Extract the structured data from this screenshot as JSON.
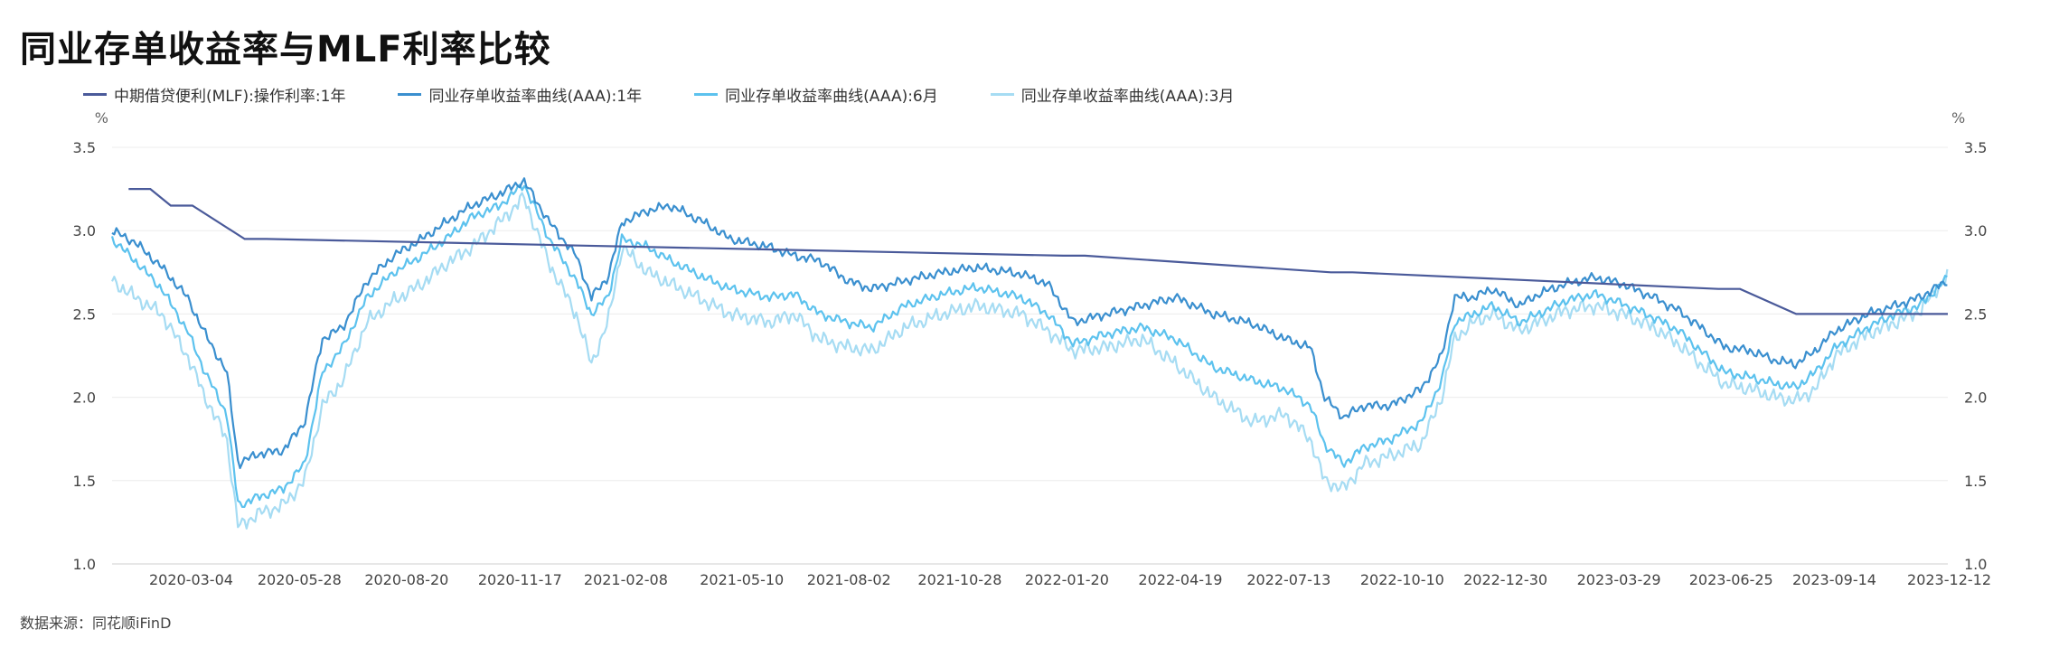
{
  "title": "同业存单收益率与MLF利率比较",
  "source": "数据来源：同花顺iFinD",
  "chart_data": {
    "type": "line",
    "y_unit_left": "%",
    "y_unit_right": "%",
    "ylim": [
      1.0,
      3.5
    ],
    "y_ticks": [
      "1.0",
      "1.5",
      "2.0",
      "2.5",
      "3.0",
      "3.5"
    ],
    "x_start": "2020-01-02",
    "x_end": "2023-12-12",
    "x_ticks": [
      "2020-03-04",
      "2020-05-28",
      "2020-08-20",
      "2020-11-17",
      "2021-02-08",
      "2021-05-10",
      "2021-08-02",
      "2021-10-28",
      "2022-01-20",
      "2022-04-19",
      "2022-07-13",
      "2022-10-10",
      "2022-12-30",
      "2023-03-29",
      "2023-06-25",
      "2023-09-14",
      "2023-12-12"
    ],
    "grid": true,
    "legend_position": "top-left",
    "series": [
      {
        "name": "中期借贷便利(MLF):操作利率:1年",
        "color": "#4a5a9a",
        "step": true,
        "points": [
          [
            "2020-01-15",
            3.25
          ],
          [
            "2020-02-17",
            3.15
          ],
          [
            "2020-04-15",
            2.95
          ],
          [
            "2022-01-17",
            2.85
          ],
          [
            "2022-08-15",
            2.75
          ],
          [
            "2023-06-15",
            2.65
          ],
          [
            "2023-08-15",
            2.5
          ],
          [
            "2023-12-12",
            2.5
          ]
        ]
      },
      {
        "name": "同业存单收益率曲线(AAA):1年",
        "color": "#3a8fcf",
        "points": [
          [
            "2020-01-02",
            3.0
          ],
          [
            "2020-01-20",
            2.93
          ],
          [
            "2020-02-10",
            2.78
          ],
          [
            "2020-03-01",
            2.6
          ],
          [
            "2020-03-15",
            2.38
          ],
          [
            "2020-04-01",
            2.15
          ],
          [
            "2020-04-10",
            1.6
          ],
          [
            "2020-04-25",
            1.66
          ],
          [
            "2020-05-15",
            1.68
          ],
          [
            "2020-06-01",
            1.85
          ],
          [
            "2020-06-15",
            2.35
          ],
          [
            "2020-07-01",
            2.42
          ],
          [
            "2020-07-20",
            2.7
          ],
          [
            "2020-08-10",
            2.85
          ],
          [
            "2020-09-01",
            2.95
          ],
          [
            "2020-09-20",
            3.05
          ],
          [
            "2020-10-10",
            3.15
          ],
          [
            "2020-11-01",
            3.22
          ],
          [
            "2020-11-20",
            3.3
          ],
          [
            "2020-12-10",
            3.05
          ],
          [
            "2020-12-31",
            2.85
          ],
          [
            "2021-01-12",
            2.6
          ],
          [
            "2021-01-25",
            2.72
          ],
          [
            "2021-02-05",
            3.05
          ],
          [
            "2021-02-25",
            3.12
          ],
          [
            "2021-03-15",
            3.15
          ],
          [
            "2021-04-10",
            3.05
          ],
          [
            "2021-05-01",
            2.95
          ],
          [
            "2021-06-01",
            2.9
          ],
          [
            "2021-06-20",
            2.85
          ],
          [
            "2021-07-10",
            2.82
          ],
          [
            "2021-08-01",
            2.7
          ],
          [
            "2021-08-20",
            2.65
          ],
          [
            "2021-09-15",
            2.7
          ],
          [
            "2021-10-15",
            2.75
          ],
          [
            "2021-11-10",
            2.78
          ],
          [
            "2021-12-15",
            2.74
          ],
          [
            "2022-01-05",
            2.68
          ],
          [
            "2022-01-25",
            2.45
          ],
          [
            "2022-02-20",
            2.5
          ],
          [
            "2022-03-20",
            2.55
          ],
          [
            "2022-04-15",
            2.6
          ],
          [
            "2022-05-15",
            2.5
          ],
          [
            "2022-06-15",
            2.44
          ],
          [
            "2022-07-10",
            2.35
          ],
          [
            "2022-07-30",
            2.3
          ],
          [
            "2022-08-10",
            2.0
          ],
          [
            "2022-08-25",
            1.88
          ],
          [
            "2022-09-10",
            1.95
          ],
          [
            "2022-10-01",
            1.95
          ],
          [
            "2022-10-25",
            2.05
          ],
          [
            "2022-11-10",
            2.25
          ],
          [
            "2022-11-20",
            2.6
          ],
          [
            "2022-12-05",
            2.6
          ],
          [
            "2022-12-20",
            2.65
          ],
          [
            "2023-01-10",
            2.55
          ],
          [
            "2023-01-25",
            2.62
          ],
          [
            "2023-02-15",
            2.68
          ],
          [
            "2023-03-10",
            2.72
          ],
          [
            "2023-04-01",
            2.68
          ],
          [
            "2023-04-25",
            2.6
          ],
          [
            "2023-05-15",
            2.52
          ],
          [
            "2023-06-01",
            2.42
          ],
          [
            "2023-06-20",
            2.3
          ],
          [
            "2023-07-10",
            2.28
          ],
          [
            "2023-07-30",
            2.22
          ],
          [
            "2023-08-15",
            2.2
          ],
          [
            "2023-08-30",
            2.28
          ],
          [
            "2023-09-15",
            2.4
          ],
          [
            "2023-10-10",
            2.5
          ],
          [
            "2023-11-01",
            2.55
          ],
          [
            "2023-11-20",
            2.6
          ],
          [
            "2023-12-12",
            2.7
          ]
        ]
      },
      {
        "name": "同业存单收益率曲线(AAA):6月",
        "color": "#5cc2ee",
        "points": [
          [
            "2020-01-02",
            2.95
          ],
          [
            "2020-01-20",
            2.82
          ],
          [
            "2020-02-10",
            2.65
          ],
          [
            "2020-03-01",
            2.4
          ],
          [
            "2020-03-15",
            2.15
          ],
          [
            "2020-04-01",
            1.9
          ],
          [
            "2020-04-10",
            1.35
          ],
          [
            "2020-04-25",
            1.4
          ],
          [
            "2020-05-15",
            1.45
          ],
          [
            "2020-06-01",
            1.6
          ],
          [
            "2020-06-15",
            2.15
          ],
          [
            "2020-07-01",
            2.3
          ],
          [
            "2020-07-20",
            2.6
          ],
          [
            "2020-08-10",
            2.75
          ],
          [
            "2020-09-01",
            2.85
          ],
          [
            "2020-09-20",
            2.95
          ],
          [
            "2020-10-10",
            3.08
          ],
          [
            "2020-11-01",
            3.15
          ],
          [
            "2020-11-20",
            3.28
          ],
          [
            "2020-12-10",
            2.95
          ],
          [
            "2020-12-31",
            2.7
          ],
          [
            "2021-01-12",
            2.5
          ],
          [
            "2021-01-25",
            2.6
          ],
          [
            "2021-02-05",
            2.95
          ],
          [
            "2021-02-25",
            2.9
          ],
          [
            "2021-03-15",
            2.82
          ],
          [
            "2021-04-10",
            2.72
          ],
          [
            "2021-05-01",
            2.65
          ],
          [
            "2021-06-01",
            2.6
          ],
          [
            "2021-06-20",
            2.62
          ],
          [
            "2021-07-10",
            2.5
          ],
          [
            "2021-08-01",
            2.45
          ],
          [
            "2021-08-20",
            2.42
          ],
          [
            "2021-09-15",
            2.55
          ],
          [
            "2021-10-15",
            2.62
          ],
          [
            "2021-11-10",
            2.66
          ],
          [
            "2021-12-15",
            2.6
          ],
          [
            "2022-01-05",
            2.5
          ],
          [
            "2022-01-25",
            2.32
          ],
          [
            "2022-02-20",
            2.38
          ],
          [
            "2022-03-20",
            2.42
          ],
          [
            "2022-04-15",
            2.35
          ],
          [
            "2022-05-15",
            2.18
          ],
          [
            "2022-06-15",
            2.1
          ],
          [
            "2022-07-10",
            2.05
          ],
          [
            "2022-07-30",
            1.95
          ],
          [
            "2022-08-10",
            1.72
          ],
          [
            "2022-08-25",
            1.6
          ],
          [
            "2022-09-10",
            1.7
          ],
          [
            "2022-10-01",
            1.75
          ],
          [
            "2022-10-25",
            1.85
          ],
          [
            "2022-11-10",
            2.1
          ],
          [
            "2022-11-20",
            2.45
          ],
          [
            "2022-12-05",
            2.5
          ],
          [
            "2022-12-20",
            2.55
          ],
          [
            "2023-01-10",
            2.45
          ],
          [
            "2023-01-25",
            2.5
          ],
          [
            "2023-02-15",
            2.58
          ],
          [
            "2023-03-10",
            2.62
          ],
          [
            "2023-04-01",
            2.56
          ],
          [
            "2023-04-25",
            2.48
          ],
          [
            "2023-05-15",
            2.4
          ],
          [
            "2023-06-01",
            2.28
          ],
          [
            "2023-06-20",
            2.15
          ],
          [
            "2023-07-10",
            2.12
          ],
          [
            "2023-07-30",
            2.08
          ],
          [
            "2023-08-15",
            2.06
          ],
          [
            "2023-08-30",
            2.15
          ],
          [
            "2023-09-15",
            2.3
          ],
          [
            "2023-10-10",
            2.42
          ],
          [
            "2023-11-01",
            2.5
          ],
          [
            "2023-11-20",
            2.55
          ],
          [
            "2023-12-12",
            2.72
          ]
        ]
      },
      {
        "name": "同业存单收益率曲线(AAA):3月",
        "color": "#a6dcf3",
        "points": [
          [
            "2020-01-02",
            2.7
          ],
          [
            "2020-01-20",
            2.6
          ],
          [
            "2020-02-10",
            2.5
          ],
          [
            "2020-03-01",
            2.25
          ],
          [
            "2020-03-15",
            2.0
          ],
          [
            "2020-04-01",
            1.75
          ],
          [
            "2020-04-10",
            1.22
          ],
          [
            "2020-04-25",
            1.3
          ],
          [
            "2020-05-15",
            1.35
          ],
          [
            "2020-06-01",
            1.5
          ],
          [
            "2020-06-15",
            1.95
          ],
          [
            "2020-07-01",
            2.1
          ],
          [
            "2020-07-20",
            2.45
          ],
          [
            "2020-08-10",
            2.58
          ],
          [
            "2020-09-01",
            2.68
          ],
          [
            "2020-09-20",
            2.8
          ],
          [
            "2020-10-10",
            2.9
          ],
          [
            "2020-11-01",
            3.05
          ],
          [
            "2020-11-20",
            3.2
          ],
          [
            "2020-12-10",
            2.8
          ],
          [
            "2020-12-31",
            2.5
          ],
          [
            "2021-01-12",
            2.2
          ],
          [
            "2021-01-25",
            2.45
          ],
          [
            "2021-02-05",
            2.9
          ],
          [
            "2021-02-25",
            2.75
          ],
          [
            "2021-03-15",
            2.68
          ],
          [
            "2021-04-10",
            2.58
          ],
          [
            "2021-05-01",
            2.5
          ],
          [
            "2021-06-01",
            2.45
          ],
          [
            "2021-06-20",
            2.5
          ],
          [
            "2021-07-10",
            2.35
          ],
          [
            "2021-08-01",
            2.3
          ],
          [
            "2021-08-20",
            2.28
          ],
          [
            "2021-09-15",
            2.42
          ],
          [
            "2021-10-15",
            2.5
          ],
          [
            "2021-11-10",
            2.55
          ],
          [
            "2021-12-15",
            2.5
          ],
          [
            "2022-01-05",
            2.4
          ],
          [
            "2022-01-25",
            2.28
          ],
          [
            "2022-02-20",
            2.3
          ],
          [
            "2022-03-20",
            2.35
          ],
          [
            "2022-04-15",
            2.2
          ],
          [
            "2022-05-15",
            2.0
          ],
          [
            "2022-06-15",
            1.85
          ],
          [
            "2022-07-10",
            1.9
          ],
          [
            "2022-07-30",
            1.75
          ],
          [
            "2022-08-10",
            1.5
          ],
          [
            "2022-08-25",
            1.45
          ],
          [
            "2022-09-10",
            1.6
          ],
          [
            "2022-10-01",
            1.65
          ],
          [
            "2022-10-25",
            1.72
          ],
          [
            "2022-11-10",
            2.0
          ],
          [
            "2022-11-20",
            2.35
          ],
          [
            "2022-12-05",
            2.45
          ],
          [
            "2022-12-20",
            2.5
          ],
          [
            "2023-01-10",
            2.4
          ],
          [
            "2023-01-25",
            2.45
          ],
          [
            "2023-02-15",
            2.52
          ],
          [
            "2023-03-10",
            2.55
          ],
          [
            "2023-04-01",
            2.5
          ],
          [
            "2023-04-25",
            2.42
          ],
          [
            "2023-05-15",
            2.32
          ],
          [
            "2023-06-01",
            2.2
          ],
          [
            "2023-06-20",
            2.08
          ],
          [
            "2023-07-10",
            2.05
          ],
          [
            "2023-07-30",
            2.0
          ],
          [
            "2023-08-15",
            1.98
          ],
          [
            "2023-08-30",
            2.05
          ],
          [
            "2023-09-15",
            2.25
          ],
          [
            "2023-10-10",
            2.38
          ],
          [
            "2023-11-01",
            2.45
          ],
          [
            "2023-11-20",
            2.52
          ],
          [
            "2023-12-12",
            2.73
          ]
        ]
      }
    ]
  }
}
